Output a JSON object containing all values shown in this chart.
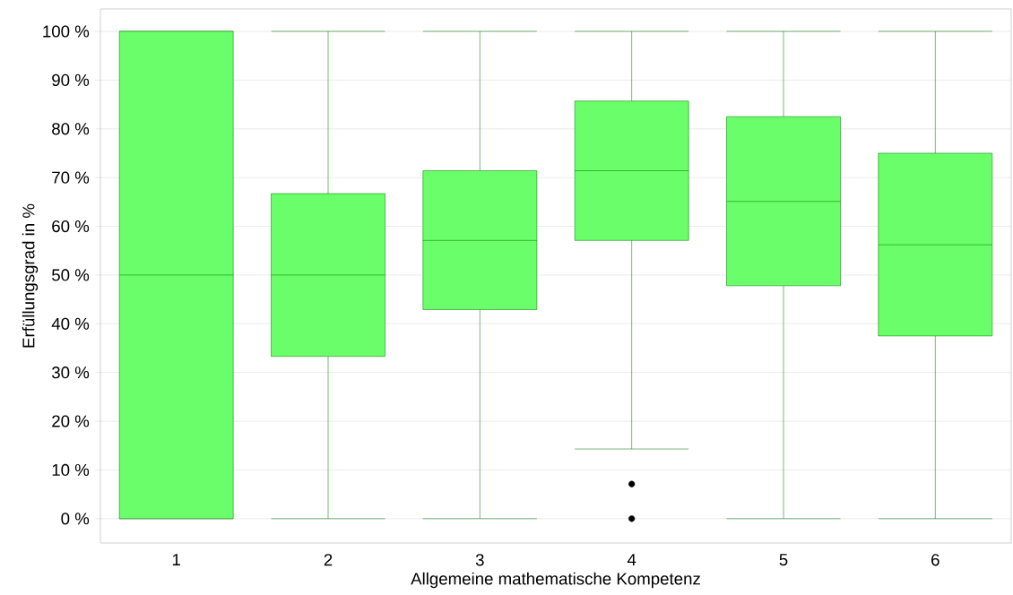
{
  "chart_data": {
    "type": "box",
    "categories": [
      "1",
      "2",
      "3",
      "4",
      "5",
      "6"
    ],
    "boxes": [
      {
        "low": 0,
        "q1": 0,
        "median": 50,
        "q3": 100,
        "high": 100
      },
      {
        "low": 0,
        "q1": 33.3,
        "median": 50,
        "q3": 66.7,
        "high": 100
      },
      {
        "low": 0,
        "q1": 42.9,
        "median": 57.1,
        "q3": 71.4,
        "high": 100
      },
      {
        "low": 14.3,
        "q1": 57.1,
        "median": 71.4,
        "q3": 85.7,
        "high": 100,
        "outliers": [
          7.1,
          0
        ]
      },
      {
        "low": 0,
        "q1": 47.8,
        "median": 65.1,
        "q3": 82.5,
        "high": 100
      },
      {
        "low": 0,
        "q1": 37.5,
        "median": 56.2,
        "q3": 75,
        "high": 100
      }
    ],
    "color": "#6aff6a",
    "xlabel": "Allgemeine mathematische Kompetenz",
    "ylabel": "Erfüllungsgrad in %",
    "ylim": [
      -5,
      104.6
    ],
    "yticks": [
      {
        "value": 0,
        "label": "0 %"
      },
      {
        "value": 10,
        "label": "10 %"
      },
      {
        "value": 20,
        "label": "20 %"
      },
      {
        "value": 30,
        "label": "30 %"
      },
      {
        "value": 40,
        "label": "40 %"
      },
      {
        "value": 50,
        "label": "50 %"
      },
      {
        "value": 60,
        "label": "60 %"
      },
      {
        "value": 70,
        "label": "70 %"
      },
      {
        "value": 80,
        "label": "80 %"
      },
      {
        "value": 90,
        "label": "90 %"
      },
      {
        "value": 100,
        "label": "100 %"
      }
    ],
    "grid": "y"
  }
}
